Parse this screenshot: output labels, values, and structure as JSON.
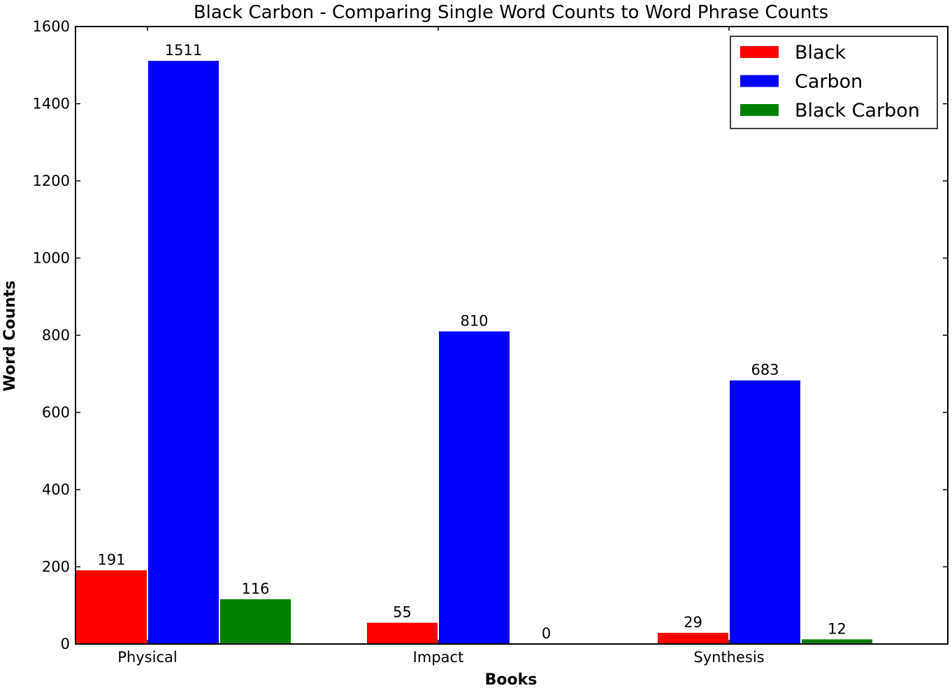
{
  "chart_data": {
    "type": "bar",
    "title": "Black Carbon - Comparing Single Word Counts to Word Phrase Counts",
    "xlabel": "Books",
    "ylabel": "Word Counts",
    "categories": [
      "Physical",
      "Impact",
      "Synthesis"
    ],
    "series": [
      {
        "name": "Black",
        "color": "#ff0000",
        "values": [
          191,
          55,
          29
        ]
      },
      {
        "name": "Carbon",
        "color": "#0000ff",
        "values": [
          1511,
          810,
          683
        ]
      },
      {
        "name": "Black Carbon",
        "color": "#008000",
        "values": [
          116,
          0,
          12
        ]
      }
    ],
    "ylim": [
      0,
      1600
    ],
    "yticks": [
      0,
      200,
      400,
      600,
      800,
      1000,
      1200,
      1400,
      1600
    ],
    "legend": "top-right",
    "grid": false
  }
}
